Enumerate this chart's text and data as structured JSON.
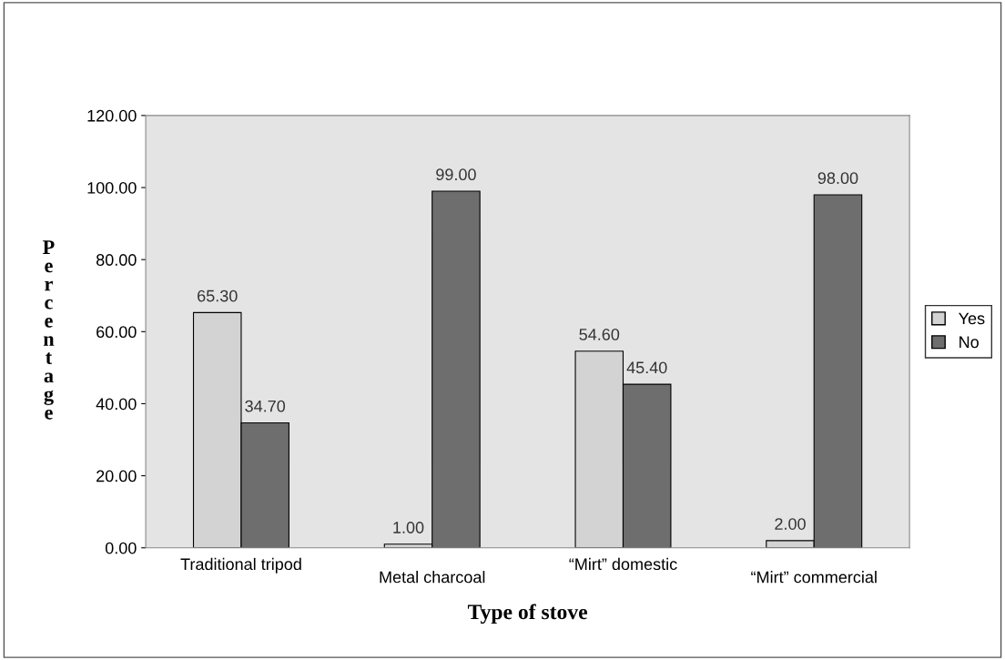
{
  "chart_data": {
    "type": "bar",
    "xlabel": "Type of stove",
    "ylabel": "Percentage",
    "categories": [
      "Traditional tripod",
      "Metal charcoal",
      "“Mirt” domestic",
      "“Mirt” commercial"
    ],
    "series": [
      {
        "name": "Yes",
        "color": "#d3d3d3",
        "values": [
          65.3,
          1.0,
          54.6,
          2.0
        ],
        "value_labels": [
          "65.30",
          "1.00",
          "54.60",
          "2.00"
        ]
      },
      {
        "name": "No",
        "color": "#6e6e6e",
        "values": [
          34.7,
          99.0,
          45.4,
          98.0
        ],
        "value_labels": [
          "34.70",
          "99.00",
          "45.40",
          "98.00"
        ]
      }
    ],
    "ylim": [
      0,
      120
    ],
    "yticks": [
      {
        "value": 0,
        "label": "0.00"
      },
      {
        "value": 20,
        "label": "20.00"
      },
      {
        "value": 40,
        "label": "40.00"
      },
      {
        "value": 60,
        "label": "60.00"
      },
      {
        "value": 80,
        "label": "80.00"
      },
      {
        "value": 100,
        "label": "100.00"
      },
      {
        "value": 120,
        "label": "120.00"
      }
    ],
    "legend": "right",
    "grid": false
  }
}
